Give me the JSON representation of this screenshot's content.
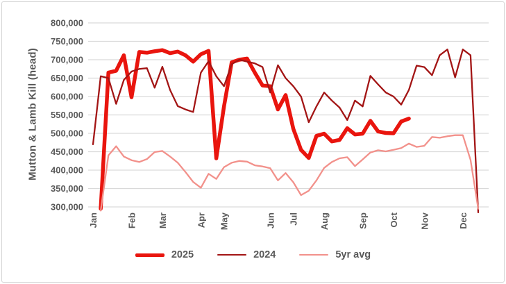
{
  "y_axis": {
    "title": "Mutton & Lamb Kill  (head)",
    "tick_values": [
      800000,
      750000,
      700000,
      650000,
      600000,
      550000,
      500000,
      450000,
      400000,
      350000,
      300000
    ]
  },
  "x_axis": {
    "month_labels": [
      "Jan",
      "Feb",
      "Mar",
      "Apr",
      "May",
      "Jun",
      "Jul",
      "Aug",
      "Sep",
      "Oct",
      "Nov",
      "Dec"
    ],
    "month_slots": [
      0,
      5,
      9,
      14,
      17,
      23,
      26,
      30,
      35,
      39,
      43,
      48
    ]
  },
  "legend": [
    {
      "label": "2025",
      "color": "#e9150e",
      "thick": true
    },
    {
      "label": "2024",
      "color": "#a31515",
      "thick": false
    },
    {
      "label": "5yr avg",
      "color": "#f2918b",
      "thick": false
    }
  ],
  "colors": {
    "gridline": "#d9d9d9",
    "text": "#595959"
  },
  "chart_data": {
    "type": "line",
    "title": "",
    "xlabel": "",
    "ylabel": "Mutton & Lamb Kill  (head)",
    "x_unit": "week of year",
    "n_points": 52,
    "ylim": [
      300000,
      800000
    ],
    "grid": "horizontal",
    "legend_position": "bottom",
    "months": [
      "Jan",
      "Feb",
      "Mar",
      "Apr",
      "May",
      "Jun",
      "Jul",
      "Aug",
      "Sep",
      "Oct",
      "Nov",
      "Dec"
    ],
    "month_slots": [
      0,
      5,
      9,
      14,
      17,
      23,
      26,
      30,
      35,
      39,
      43,
      48
    ],
    "y_ticks": [
      800000,
      750000,
      700000,
      650000,
      600000,
      550000,
      500000,
      450000,
      400000,
      350000,
      300000
    ],
    "series": [
      {
        "name": "2025",
        "color": "#e9150e",
        "width": 5.5,
        "values": [
          null,
          295000,
          665000,
          670000,
          712000,
          598000,
          721000,
          719000,
          723000,
          726000,
          718000,
          722000,
          712000,
          695000,
          715000,
          724000,
          432000,
          573000,
          693000,
          700000,
          703000,
          665000,
          630000,
          628000,
          565000,
          604000,
          512000,
          455000,
          433000,
          493000,
          499000,
          478000,
          482000,
          514000,
          497000,
          499000,
          534000,
          505000,
          501000,
          500000,
          532000,
          540000,
          null,
          null,
          null,
          null,
          null,
          null,
          null,
          null,
          null,
          null
        ]
      },
      {
        "name": "2024",
        "color": "#a31515",
        "width": 2.3,
        "values": [
          470000,
          655000,
          650000,
          580000,
          645000,
          668000,
          675000,
          677000,
          624000,
          681000,
          618000,
          574000,
          565000,
          558000,
          665000,
          696000,
          655000,
          628000,
          688000,
          700000,
          695000,
          690000,
          680000,
          611000,
          685000,
          650000,
          628000,
          600000,
          530000,
          573000,
          611000,
          589000,
          570000,
          536000,
          589000,
          573000,
          656000,
          633000,
          611000,
          600000,
          578000,
          618000,
          684000,
          680000,
          658000,
          712000,
          728000,
          652000,
          728000,
          712000,
          285000,
          null
        ]
      },
      {
        "name": "5yr avg",
        "color": "#f2918b",
        "width": 2.3,
        "values": [
          null,
          290000,
          440000,
          465000,
          437000,
          427000,
          422000,
          430000,
          449000,
          452000,
          437000,
          420000,
          395000,
          368000,
          352000,
          390000,
          376000,
          408000,
          420000,
          425000,
          423000,
          413000,
          410000,
          405000,
          372000,
          392000,
          367000,
          332000,
          344000,
          372000,
          406000,
          422000,
          432000,
          435000,
          411000,
          429000,
          448000,
          454000,
          451000,
          455000,
          460000,
          472000,
          463000,
          466000,
          490000,
          488000,
          492000,
          495000,
          495000,
          428000,
          295000,
          null
        ]
      }
    ]
  }
}
